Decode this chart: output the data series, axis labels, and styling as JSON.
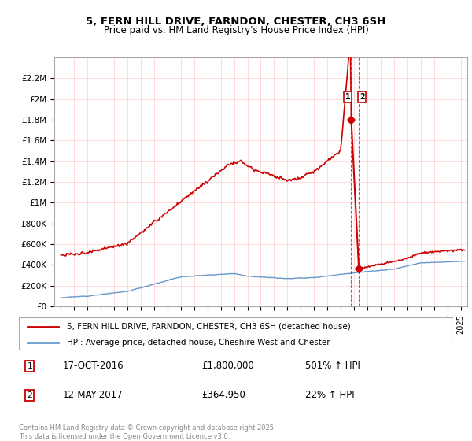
{
  "title_line1": "5, FERN HILL DRIVE, FARNDON, CHESTER, CH3 6SH",
  "title_line2": "Price paid vs. HM Land Registry's House Price Index (HPI)",
  "ylim": [
    0,
    2400000
  ],
  "xlim_start": 1994.5,
  "xlim_end": 2025.5,
  "yticks": [
    0,
    200000,
    400000,
    600000,
    800000,
    1000000,
    1200000,
    1400000,
    1600000,
    1800000,
    2000000,
    2200000
  ],
  "ytick_labels": [
    "£0",
    "£200K",
    "£400K",
    "£600K",
    "£800K",
    "£1M",
    "£1.2M",
    "£1.4M",
    "£1.6M",
    "£1.8M",
    "£2M",
    "£2.2M"
  ],
  "xticks": [
    1995,
    1996,
    1997,
    1998,
    1999,
    2000,
    2001,
    2002,
    2003,
    2004,
    2005,
    2006,
    2007,
    2008,
    2009,
    2010,
    2011,
    2012,
    2013,
    2014,
    2015,
    2016,
    2017,
    2018,
    2019,
    2020,
    2021,
    2022,
    2023,
    2024,
    2025
  ],
  "transaction1_date": 2016.79,
  "transaction1_price": 1800000,
  "transaction1_label": "1",
  "transaction2_date": 2017.36,
  "transaction2_price": 364950,
  "transaction2_label": "2",
  "legend_label_property": "5, FERN HILL DRIVE, FARNDON, CHESTER, CH3 6SH (detached house)",
  "legend_label_hpi": "HPI: Average price, detached house, Cheshire West and Chester",
  "footer": "Contains HM Land Registry data © Crown copyright and database right 2025.\nThis data is licensed under the Open Government Licence v3.0.",
  "property_line_color": "#cc0000",
  "hpi_line_color": "#6699cc",
  "grid_color": "#ffcccc",
  "background_color": "#ffffff",
  "plot_bg_color": "#ffffff"
}
